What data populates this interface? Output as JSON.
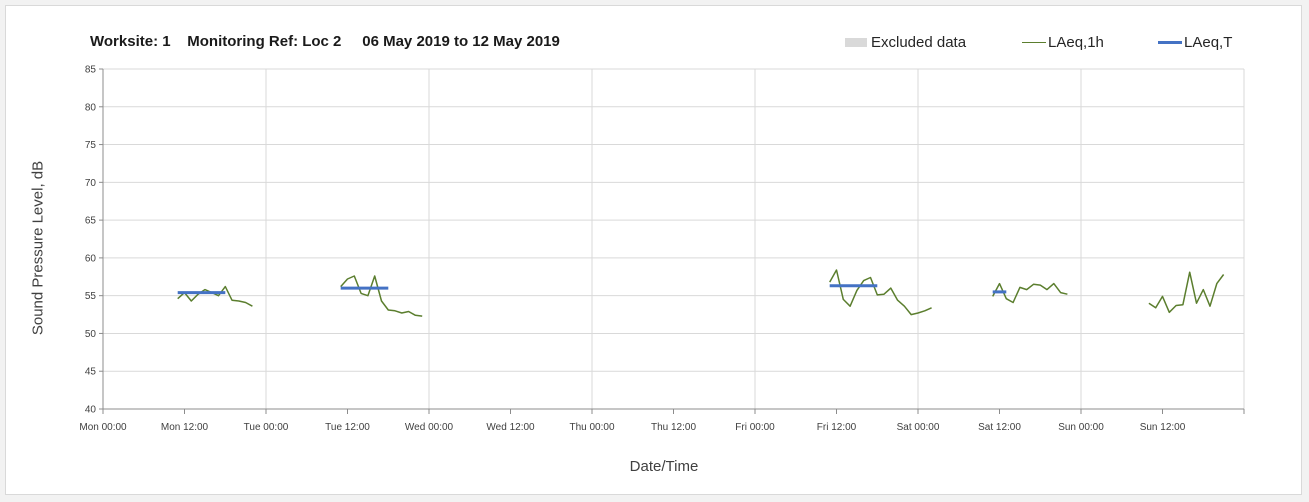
{
  "header": {
    "title": "Worksite: 1    Monitoring Ref: Loc 2     06 May 2019 to 12 May 2019"
  },
  "legend": {
    "excluded": "Excluded data",
    "laeq1h": "LAeq,1h",
    "laeqT": "LAeq,T"
  },
  "colors": {
    "laeq1h": "#5b7e2e",
    "laeqT": "#4472c4",
    "excluded": "#d9d9d9",
    "grid": "#d9d9d9"
  },
  "chart_data": {
    "type": "line",
    "xlabel": "Date/Time",
    "ylabel": "Sound Pressure Level, dB",
    "ylim": [
      40,
      85
    ],
    "yticks": [
      40,
      45,
      50,
      55,
      60,
      65,
      70,
      75,
      80,
      85
    ],
    "xlim_hours": [
      0,
      168
    ],
    "xticks": [
      {
        "hour": 0,
        "label": "Mon 00:00"
      },
      {
        "hour": 12,
        "label": "Mon 12:00"
      },
      {
        "hour": 24,
        "label": "Tue 00:00"
      },
      {
        "hour": 36,
        "label": "Tue 12:00"
      },
      {
        "hour": 48,
        "label": "Wed 00:00"
      },
      {
        "hour": 60,
        "label": "Wed 12:00"
      },
      {
        "hour": 72,
        "label": "Thu 00:00"
      },
      {
        "hour": 84,
        "label": "Thu 12:00"
      },
      {
        "hour": 96,
        "label": "Fri 00:00"
      },
      {
        "hour": 108,
        "label": "Fri 12:00"
      },
      {
        "hour": 120,
        "label": "Sat 00:00"
      },
      {
        "hour": 132,
        "label": "Sat 12:00"
      },
      {
        "hour": 144,
        "label": "Sun 00:00"
      },
      {
        "hour": 156,
        "label": "Sun 12:00"
      }
    ],
    "grid": "vertical lines at each day",
    "legend_position": "top-right",
    "series": [
      {
        "name": "LAeq,1h",
        "segments": [
          [
            [
              11,
              54.6
            ],
            [
              12,
              55.4
            ],
            [
              13,
              54.3
            ],
            [
              14,
              55.2
            ],
            [
              15,
              55.8
            ],
            [
              16,
              55.4
            ],
            [
              17,
              55.0
            ],
            [
              18,
              56.2
            ],
            [
              19,
              54.4
            ],
            [
              20,
              54.3
            ],
            [
              21,
              54.1
            ],
            [
              22,
              53.6
            ]
          ],
          [
            [
              35,
              56.2
            ],
            [
              36,
              57.2
            ],
            [
              37,
              57.6
            ],
            [
              38,
              55.3
            ],
            [
              39,
              55.0
            ],
            [
              40,
              57.6
            ],
            [
              41,
              54.3
            ],
            [
              42,
              53.1
            ],
            [
              43,
              53.0
            ],
            [
              44,
              52.7
            ],
            [
              45,
              52.9
            ],
            [
              46,
              52.4
            ],
            [
              47,
              52.3
            ]
          ],
          [
            [
              107,
              56.8
            ],
            [
              108,
              58.4
            ],
            [
              109,
              54.5
            ],
            [
              110,
              53.6
            ],
            [
              111,
              55.7
            ],
            [
              112,
              57.0
            ],
            [
              113,
              57.4
            ],
            [
              114,
              55.1
            ],
            [
              115,
              55.2
            ],
            [
              116,
              56.0
            ],
            [
              117,
              54.4
            ],
            [
              118,
              53.6
            ],
            [
              119,
              52.5
            ],
            [
              120,
              52.7
            ],
            [
              121,
              53.0
            ],
            [
              122,
              53.4
            ]
          ],
          [
            [
              131,
              54.9
            ],
            [
              132,
              56.6
            ],
            [
              133,
              54.6
            ],
            [
              134,
              54.1
            ],
            [
              135,
              56.1
            ],
            [
              136,
              55.8
            ],
            [
              137,
              56.5
            ],
            [
              138,
              56.4
            ],
            [
              139,
              55.8
            ],
            [
              140,
              56.6
            ],
            [
              141,
              55.4
            ],
            [
              142,
              55.2
            ]
          ],
          [
            [
              154,
              54.0
            ],
            [
              155,
              53.4
            ],
            [
              156,
              54.9
            ],
            [
              157,
              52.8
            ],
            [
              158,
              53.7
            ],
            [
              159,
              53.8
            ],
            [
              160,
              58.1
            ],
            [
              161,
              54.0
            ],
            [
              162,
              55.8
            ],
            [
              163,
              53.6
            ],
            [
              164,
              56.6
            ],
            [
              165,
              57.8
            ]
          ]
        ]
      },
      {
        "name": "LAeq,T",
        "segments": [
          [
            [
              11,
              55.4
            ],
            [
              18,
              55.4
            ]
          ],
          [
            [
              35,
              56.0
            ],
            [
              42,
              56.0
            ]
          ],
          [
            [
              107,
              56.3
            ],
            [
              114,
              56.3
            ]
          ],
          [
            [
              131,
              55.5
            ],
            [
              133,
              55.5
            ]
          ]
        ]
      }
    ]
  }
}
